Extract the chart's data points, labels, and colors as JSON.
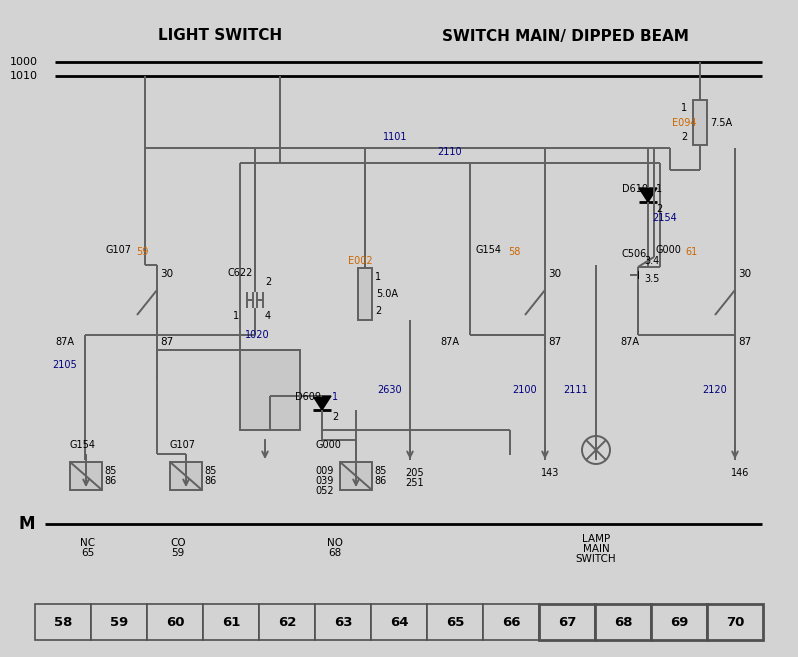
{
  "bg_color": "#d3d3d3",
  "title_left": "LIGHT SWITCH",
  "title_right": "SWITCH MAIN/ DIPPED BEAM",
  "wire_color": "#606060",
  "orange": "#cc6600",
  "blue": "#000080",
  "black": "#000000",
  "bottom_numbers": [
    "58",
    "59",
    "60",
    "61",
    "62",
    "63",
    "64",
    "65",
    "66",
    "67",
    "68",
    "69",
    "70"
  ],
  "figsize": [
    7.98,
    6.57
  ],
  "dpi": 100
}
